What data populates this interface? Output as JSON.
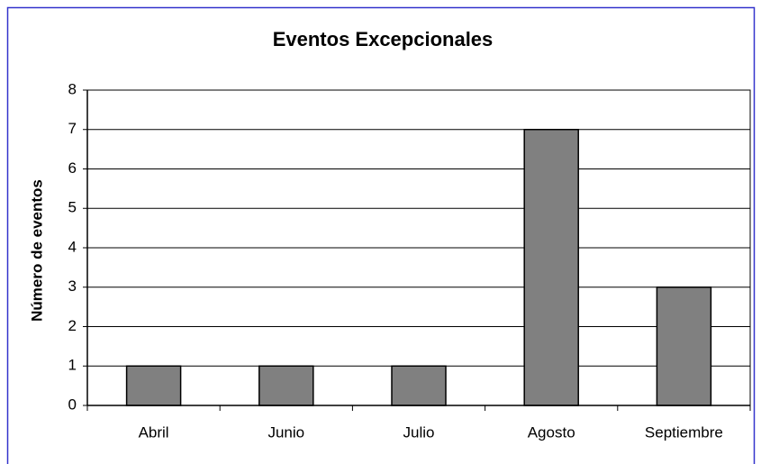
{
  "chart_data": {
    "type": "bar",
    "title": "Eventos Excepcionales",
    "y_label": "Número de eventos",
    "categories": [
      "Abril",
      "Junio",
      "Julio",
      "Agosto",
      "Septiembre"
    ],
    "values": [
      1,
      1,
      1,
      7,
      3
    ],
    "color": "#808080",
    "ylim": [
      0,
      8
    ],
    "yticks": [
      0,
      1,
      2,
      3,
      4,
      5,
      6,
      7,
      8
    ],
    "grid": true
  }
}
